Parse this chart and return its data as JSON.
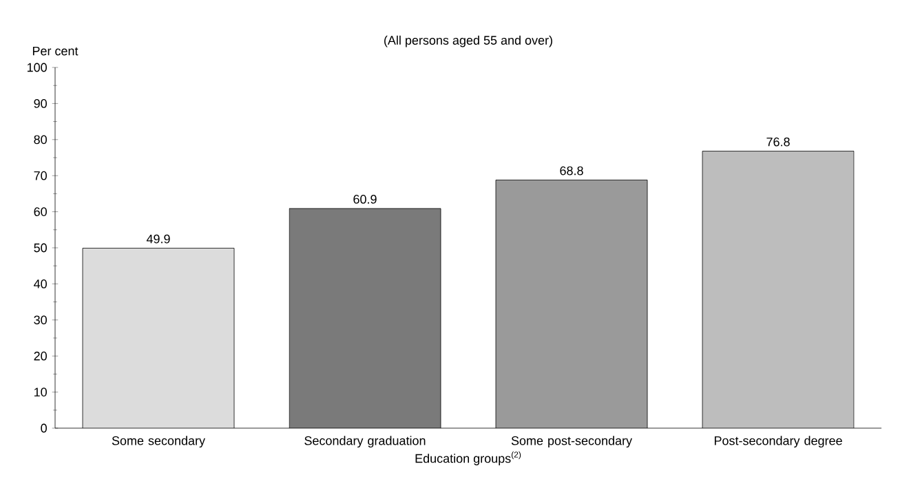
{
  "chart_data": {
    "type": "bar",
    "title": "(All persons aged 55 and over)",
    "ylabel": "Per cent",
    "xlabel": "Education groups$^{(2)}$",
    "categories": [
      "Some secondary",
      "Secondary graduation",
      "Some post-secondary",
      "Post-secondary degree"
    ],
    "values": [
      49.9,
      60.9,
      68.8,
      76.8
    ],
    "colors": [
      "#dcdcdc",
      "#7a7a7a",
      "#9a9a9a",
      "#bdbdbd"
    ],
    "ylim": [
      0,
      100
    ],
    "yticks": [
      0,
      10,
      20,
      30,
      40,
      50,
      60,
      70,
      80,
      90,
      100
    ],
    "data_labels": true
  }
}
